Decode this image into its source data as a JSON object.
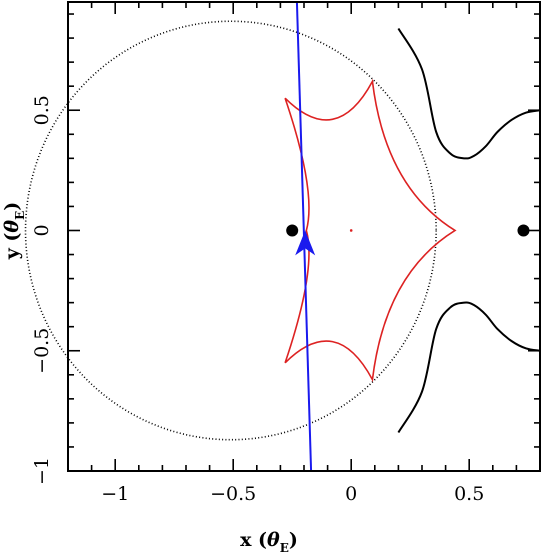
{
  "chart_data": {
    "type": "scatter",
    "xlabel": "x",
    "ylabel": "y",
    "axis_unit": "θ",
    "axis_unit_sub": "E",
    "xlim": [
      -1.2,
      0.8
    ],
    "ylim": [
      -1.0,
      0.95
    ],
    "xticks": [
      -1,
      -0.5,
      0,
      0.5
    ],
    "xtick_labels": [
      "−1",
      "−0.5",
      "0",
      "0.5"
    ],
    "yticks": [
      -1,
      -0.5,
      0,
      0.5
    ],
    "ytick_labels": [
      "−1",
      "−0.5",
      "0",
      "0.5"
    ],
    "grid": false,
    "colors": {
      "caustic": "#dd2222",
      "trajectory": "#1a1aee",
      "critical_curve": "#000000"
    },
    "lens_masses": [
      {
        "x": -0.25,
        "y": 0.0
      },
      {
        "x": 0.73,
        "y": 0.0
      }
    ],
    "planetary_caustic": {
      "x": 0.0,
      "y": 0.0
    },
    "caustic_cusps": [
      {
        "x": 0.09,
        "y": 0.62
      },
      {
        "x": 0.44,
        "y": 0.0
      },
      {
        "x": 0.09,
        "y": -0.62
      },
      {
        "x": -0.28,
        "y": -0.55
      },
      {
        "x": -0.19,
        "y": 0.0
      },
      {
        "x": -0.28,
        "y": 0.55
      }
    ],
    "critical_curve_circle": {
      "cx": -0.51,
      "cy": 0.0,
      "r": 0.87
    },
    "critical_curve_right_x": [
      0.2,
      0.3,
      0.36,
      0.42,
      0.48,
      0.52,
      0.57,
      0.62,
      0.68,
      0.74,
      0.8
    ],
    "critical_curve_right_y": [
      0.84,
      0.67,
      0.41,
      0.32,
      0.3,
      0.31,
      0.35,
      0.41,
      0.46,
      0.49,
      0.5
    ],
    "source_trajectory": {
      "x1": -0.23,
      "y1": 0.95,
      "x2": -0.17,
      "y2": -1.0
    },
    "source_position": {
      "x": -0.195,
      "y": -0.07
    }
  }
}
